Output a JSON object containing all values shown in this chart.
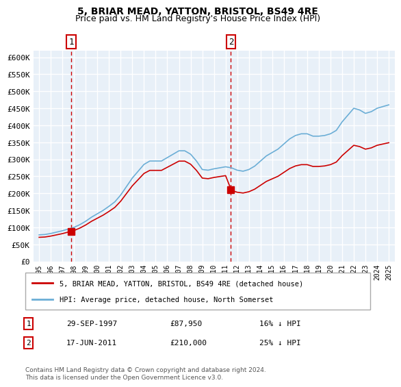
{
  "title1": "5, BRIAR MEAD, YATTON, BRISTOL, BS49 4RE",
  "title2": "Price paid vs. HM Land Registry's House Price Index (HPI)",
  "legend_line1": "5, BRIAR MEAD, YATTON, BRISTOL, BS49 4RE (detached house)",
  "legend_line2": "HPI: Average price, detached house, North Somerset",
  "footnote": "Contains HM Land Registry data © Crown copyright and database right 2024.\nThis data is licensed under the Open Government Licence v3.0.",
  "sale1_label": "1",
  "sale1_date": "29-SEP-1997",
  "sale1_price": "£87,950",
  "sale1_hpi": "16% ↓ HPI",
  "sale2_label": "2",
  "sale2_date": "17-JUN-2011",
  "sale2_price": "£210,000",
  "sale2_hpi": "25% ↓ HPI",
  "hpi_color": "#6baed6",
  "price_color": "#cc0000",
  "background_color": "#e8f0f8",
  "grid_color": "#ffffff",
  "sale1_year": 1997.75,
  "sale2_year": 2011.46,
  "sale1_value": 87950,
  "sale2_value": 210000,
  "ylim": [
    0,
    620000
  ],
  "xlim_start": 1994.5,
  "xlim_end": 2025.5
}
